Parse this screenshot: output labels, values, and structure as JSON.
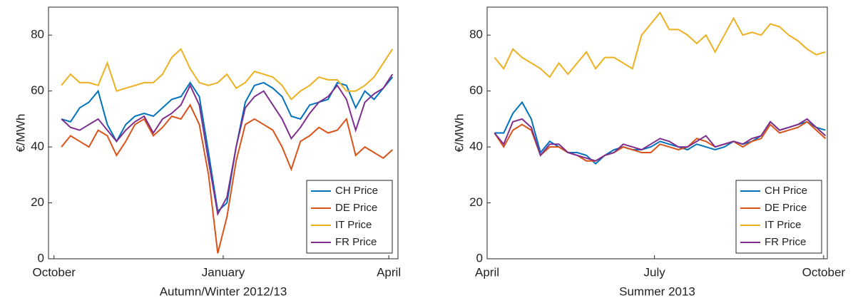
{
  "chart_data": [
    {
      "type": "line",
      "x_label": "Autumn/Winter 2012/13",
      "y_label": "€/MWh",
      "x": [
        4,
        9,
        14,
        19,
        24,
        29,
        34,
        39,
        44,
        49,
        54,
        59,
        64,
        69,
        74,
        79,
        84,
        89,
        94,
        99,
        104,
        109,
        114,
        119,
        124,
        129,
        134,
        139,
        144,
        149,
        154,
        159,
        164,
        169,
        174,
        179,
        184
      ],
      "series": [
        {
          "name": "CH Price",
          "color": "#0072bd",
          "values": [
            50,
            49,
            54,
            56,
            60,
            48,
            42,
            48,
            51,
            52,
            51,
            54,
            57,
            58,
            63,
            58,
            38,
            17,
            20,
            40,
            56,
            62,
            63,
            61,
            58,
            51,
            50,
            55,
            56,
            57,
            63,
            62,
            54,
            60,
            57,
            61,
            65
          ]
        },
        {
          "name": "DE Price",
          "color": "#d95319",
          "values": [
            40,
            44,
            42,
            40,
            46,
            44,
            37,
            42,
            48,
            50,
            44,
            47,
            51,
            50,
            55,
            48,
            30,
            2,
            15,
            35,
            48,
            50,
            48,
            46,
            40,
            32,
            42,
            44,
            47,
            45,
            46,
            50,
            37,
            40,
            38,
            36,
            39
          ]
        },
        {
          "name": "IT Price",
          "color": "#edb120",
          "values": [
            62,
            66,
            63,
            63,
            62,
            70,
            60,
            61,
            62,
            63,
            63,
            66,
            72,
            75,
            68,
            63,
            62,
            63,
            66,
            61,
            63,
            67,
            66,
            65,
            62,
            57,
            60,
            62,
            65,
            64,
            64,
            60,
            60,
            62,
            65,
            70,
            75
          ]
        },
        {
          "name": "FR Price",
          "color": "#7e2f8e",
          "values": [
            50,
            47,
            46,
            48,
            50,
            46,
            42,
            46,
            49,
            51,
            45,
            50,
            52,
            55,
            62,
            55,
            35,
            16,
            22,
            40,
            54,
            58,
            60,
            55,
            50,
            43,
            47,
            52,
            56,
            58,
            62,
            57,
            46,
            56,
            59,
            61,
            66
          ]
        }
      ],
      "xlim": [
        -3,
        187
      ],
      "ylim": [
        0,
        90
      ],
      "xticks": [
        {
          "value": 0,
          "label": "October"
        },
        {
          "value": 92,
          "label": "January"
        },
        {
          "value": 182,
          "label": "April"
        }
      ],
      "yticks": [
        0,
        20,
        40,
        60,
        80
      ],
      "legend": "lower right"
    },
    {
      "type": "line",
      "x_label": "Summer 2013",
      "y_label": "€/MWh",
      "x": [
        4,
        9,
        14,
        19,
        24,
        29,
        34,
        39,
        44,
        49,
        54,
        59,
        64,
        69,
        74,
        79,
        84,
        89,
        94,
        99,
        104,
        109,
        114,
        119,
        124,
        129,
        134,
        139,
        144,
        149,
        154,
        159,
        164,
        169,
        174,
        179,
        184
      ],
      "series": [
        {
          "name": "CH Price",
          "color": "#0072bd",
          "values": [
            45,
            45,
            52,
            56,
            50,
            38,
            42,
            40,
            38,
            38,
            37,
            34,
            37,
            39,
            40,
            39,
            39,
            40,
            42,
            41,
            40,
            39,
            41,
            40,
            39,
            40,
            42,
            41,
            42,
            44,
            49,
            46,
            47,
            48,
            49,
            47,
            46
          ]
        },
        {
          "name": "DE Price",
          "color": "#d95319",
          "values": [
            45,
            40,
            46,
            48,
            46,
            37,
            40,
            40,
            38,
            37,
            35,
            35,
            37,
            38,
            40,
            39,
            38,
            38,
            41,
            40,
            39,
            40,
            43,
            42,
            40,
            41,
            42,
            40,
            42,
            43,
            48,
            45,
            46,
            47,
            49,
            46,
            43
          ]
        },
        {
          "name": "IT Price",
          "color": "#edb120",
          "values": [
            72,
            68,
            75,
            72,
            70,
            68,
            65,
            70,
            66,
            70,
            74,
            68,
            72,
            72,
            70,
            68,
            80,
            84,
            88,
            82,
            82,
            80,
            77,
            80,
            74,
            80,
            86,
            80,
            81,
            80,
            84,
            83,
            80,
            78,
            75,
            73,
            74
          ]
        },
        {
          "name": "FR Price",
          "color": "#7e2f8e",
          "values": [
            45,
            41,
            49,
            50,
            47,
            37,
            41,
            41,
            38,
            37,
            36,
            35,
            37,
            38,
            41,
            40,
            39,
            41,
            43,
            42,
            40,
            40,
            42,
            44,
            40,
            41,
            42,
            41,
            43,
            44,
            49,
            46,
            47,
            48,
            50,
            47,
            44
          ]
        }
      ],
      "xlim": [
        0,
        185
      ],
      "ylim": [
        0,
        90
      ],
      "xticks": [
        {
          "value": 0,
          "label": "April"
        },
        {
          "value": 91,
          "label": "July"
        },
        {
          "value": 183,
          "label": "October"
        }
      ],
      "yticks": [
        0,
        20,
        40,
        60,
        80
      ],
      "legend": "lower right"
    }
  ]
}
